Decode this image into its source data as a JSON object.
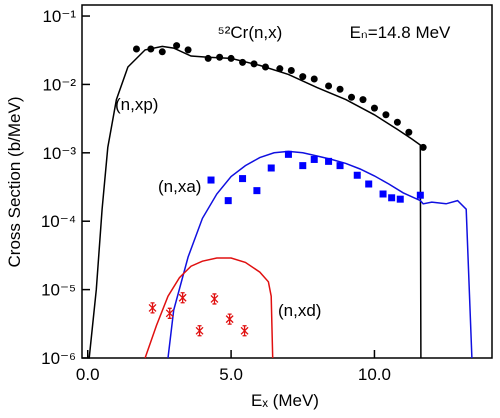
{
  "chart_data": {
    "type": "line",
    "title": "⁵²Cr(n,x)",
    "subtitle": "Eₙ=14.8  MeV",
    "x_label": "Eₓ (MeV)",
    "y_label": "Cross Section (b/MeV)",
    "annotations": [
      "(n,xp)",
      "(n,xa)",
      "(n,xd)"
    ],
    "log_y": true,
    "xlim": [
      -0.2,
      14.1
    ],
    "ylim": [
      1e-06,
      0.145
    ],
    "xticks": [
      {
        "value": 0,
        "label": "0.0"
      },
      {
        "value": 5,
        "label": "5.0"
      },
      {
        "value": 10,
        "label": "10.0"
      }
    ],
    "yticks": [
      {
        "value": 1e-06,
        "label": "10⁻⁶"
      },
      {
        "value": 1e-05,
        "label": "10⁻⁵"
      },
      {
        "value": 0.0001,
        "label": "10⁻⁴"
      },
      {
        "value": 0.001,
        "label": "10⁻³"
      },
      {
        "value": 0.01,
        "label": "10⁻²"
      },
      {
        "value": 0.1,
        "label": "10⁻¹"
      }
    ],
    "series": [
      {
        "color": "#000000",
        "marker": "none",
        "x": [
          0.05,
          0.3,
          0.5,
          0.7,
          1.0,
          1.4,
          2.0,
          2.6,
          3.0,
          3.6,
          4.2,
          5.0,
          6.0,
          7.0,
          8.0,
          9.0,
          10.0,
          10.8,
          11.3,
          11.6,
          11.62
        ],
        "values": [
          1e-06,
          1e-05,
          0.00015,
          0.0012,
          0.006,
          0.018,
          0.032,
          0.036,
          0.034,
          0.026,
          0.025,
          0.024,
          0.019,
          0.014,
          0.009,
          0.006,
          0.0036,
          0.0022,
          0.0016,
          0.0013,
          1e-06
        ]
      },
      {
        "color": "#000000",
        "marker": "circle",
        "x": [
          1.7,
          2.2,
          2.6,
          3.1,
          3.5,
          4.2,
          4.6,
          5.0,
          5.4,
          5.8,
          6.2,
          6.7,
          7.1,
          7.5,
          7.9,
          8.4,
          8.8,
          9.2,
          9.6,
          10.0,
          10.4,
          10.8,
          11.2,
          11.7
        ],
        "values": [
          0.033,
          0.033,
          0.03,
          0.037,
          0.032,
          0.024,
          0.025,
          0.024,
          0.021,
          0.02,
          0.018,
          0.017,
          0.016,
          0.013,
          0.012,
          0.0095,
          0.0085,
          0.0065,
          0.006,
          0.0045,
          0.0036,
          0.0028,
          0.002,
          0.0012
        ]
      },
      {
        "color": "#1010e0",
        "marker": "none",
        "x": [
          2.8,
          3.0,
          3.5,
          4.0,
          4.5,
          5.0,
          5.5,
          6.0,
          6.5,
          7.0,
          7.5,
          8.0,
          8.5,
          9.0,
          9.5,
          10.0,
          10.5,
          11.0,
          11.6,
          11.7,
          12.0,
          12.5,
          12.9,
          13.2,
          13.4
        ],
        "values": [
          1e-06,
          5e-06,
          3e-05,
          0.00011,
          0.00025,
          0.00045,
          0.00065,
          0.00085,
          0.001,
          0.00105,
          0.001,
          0.0009,
          0.0008,
          0.0007,
          0.00058,
          0.00046,
          0.00035,
          0.00026,
          0.0002,
          0.00018,
          0.00019,
          0.00018,
          0.0002,
          0.00015,
          1e-06
        ]
      },
      {
        "color": "#0000ff",
        "marker": "square",
        "x": [
          4.3,
          4.9,
          5.4,
          5.9,
          6.4,
          7.0,
          7.5,
          7.9,
          8.4,
          8.8,
          9.4,
          9.8,
          10.3,
          10.6,
          10.9,
          11.6
        ],
        "values": [
          0.0004,
          0.0002,
          0.00042,
          0.00028,
          0.0006,
          0.00095,
          0.00065,
          0.0008,
          0.00075,
          0.00065,
          0.00047,
          0.00035,
          0.00025,
          0.00022,
          0.00021,
          0.00024
        ]
      },
      {
        "color": "#e01010",
        "marker": "none",
        "x": [
          2.0,
          2.4,
          2.8,
          3.2,
          3.6,
          4.0,
          4.5,
          5.0,
          5.5,
          6.0,
          6.3,
          6.4,
          6.45
        ],
        "values": [
          1e-06,
          3e-06,
          8e-06,
          1.5e-05,
          2.2e-05,
          2.6e-05,
          2.9e-05,
          2.9e-05,
          2.5e-05,
          1.8e-05,
          1.3e-05,
          8e-06,
          1e-06
        ]
      },
      {
        "color": "#e01010",
        "marker": "asterisk",
        "x": [
          2.26,
          2.86,
          3.31,
          3.9,
          4.42,
          4.95,
          5.47
        ],
        "values": [
          5.4e-06,
          4.5e-06,
          7.6e-06,
          2.5e-06,
          7.3e-06,
          3.7e-06,
          2.5e-06
        ]
      }
    ]
  }
}
